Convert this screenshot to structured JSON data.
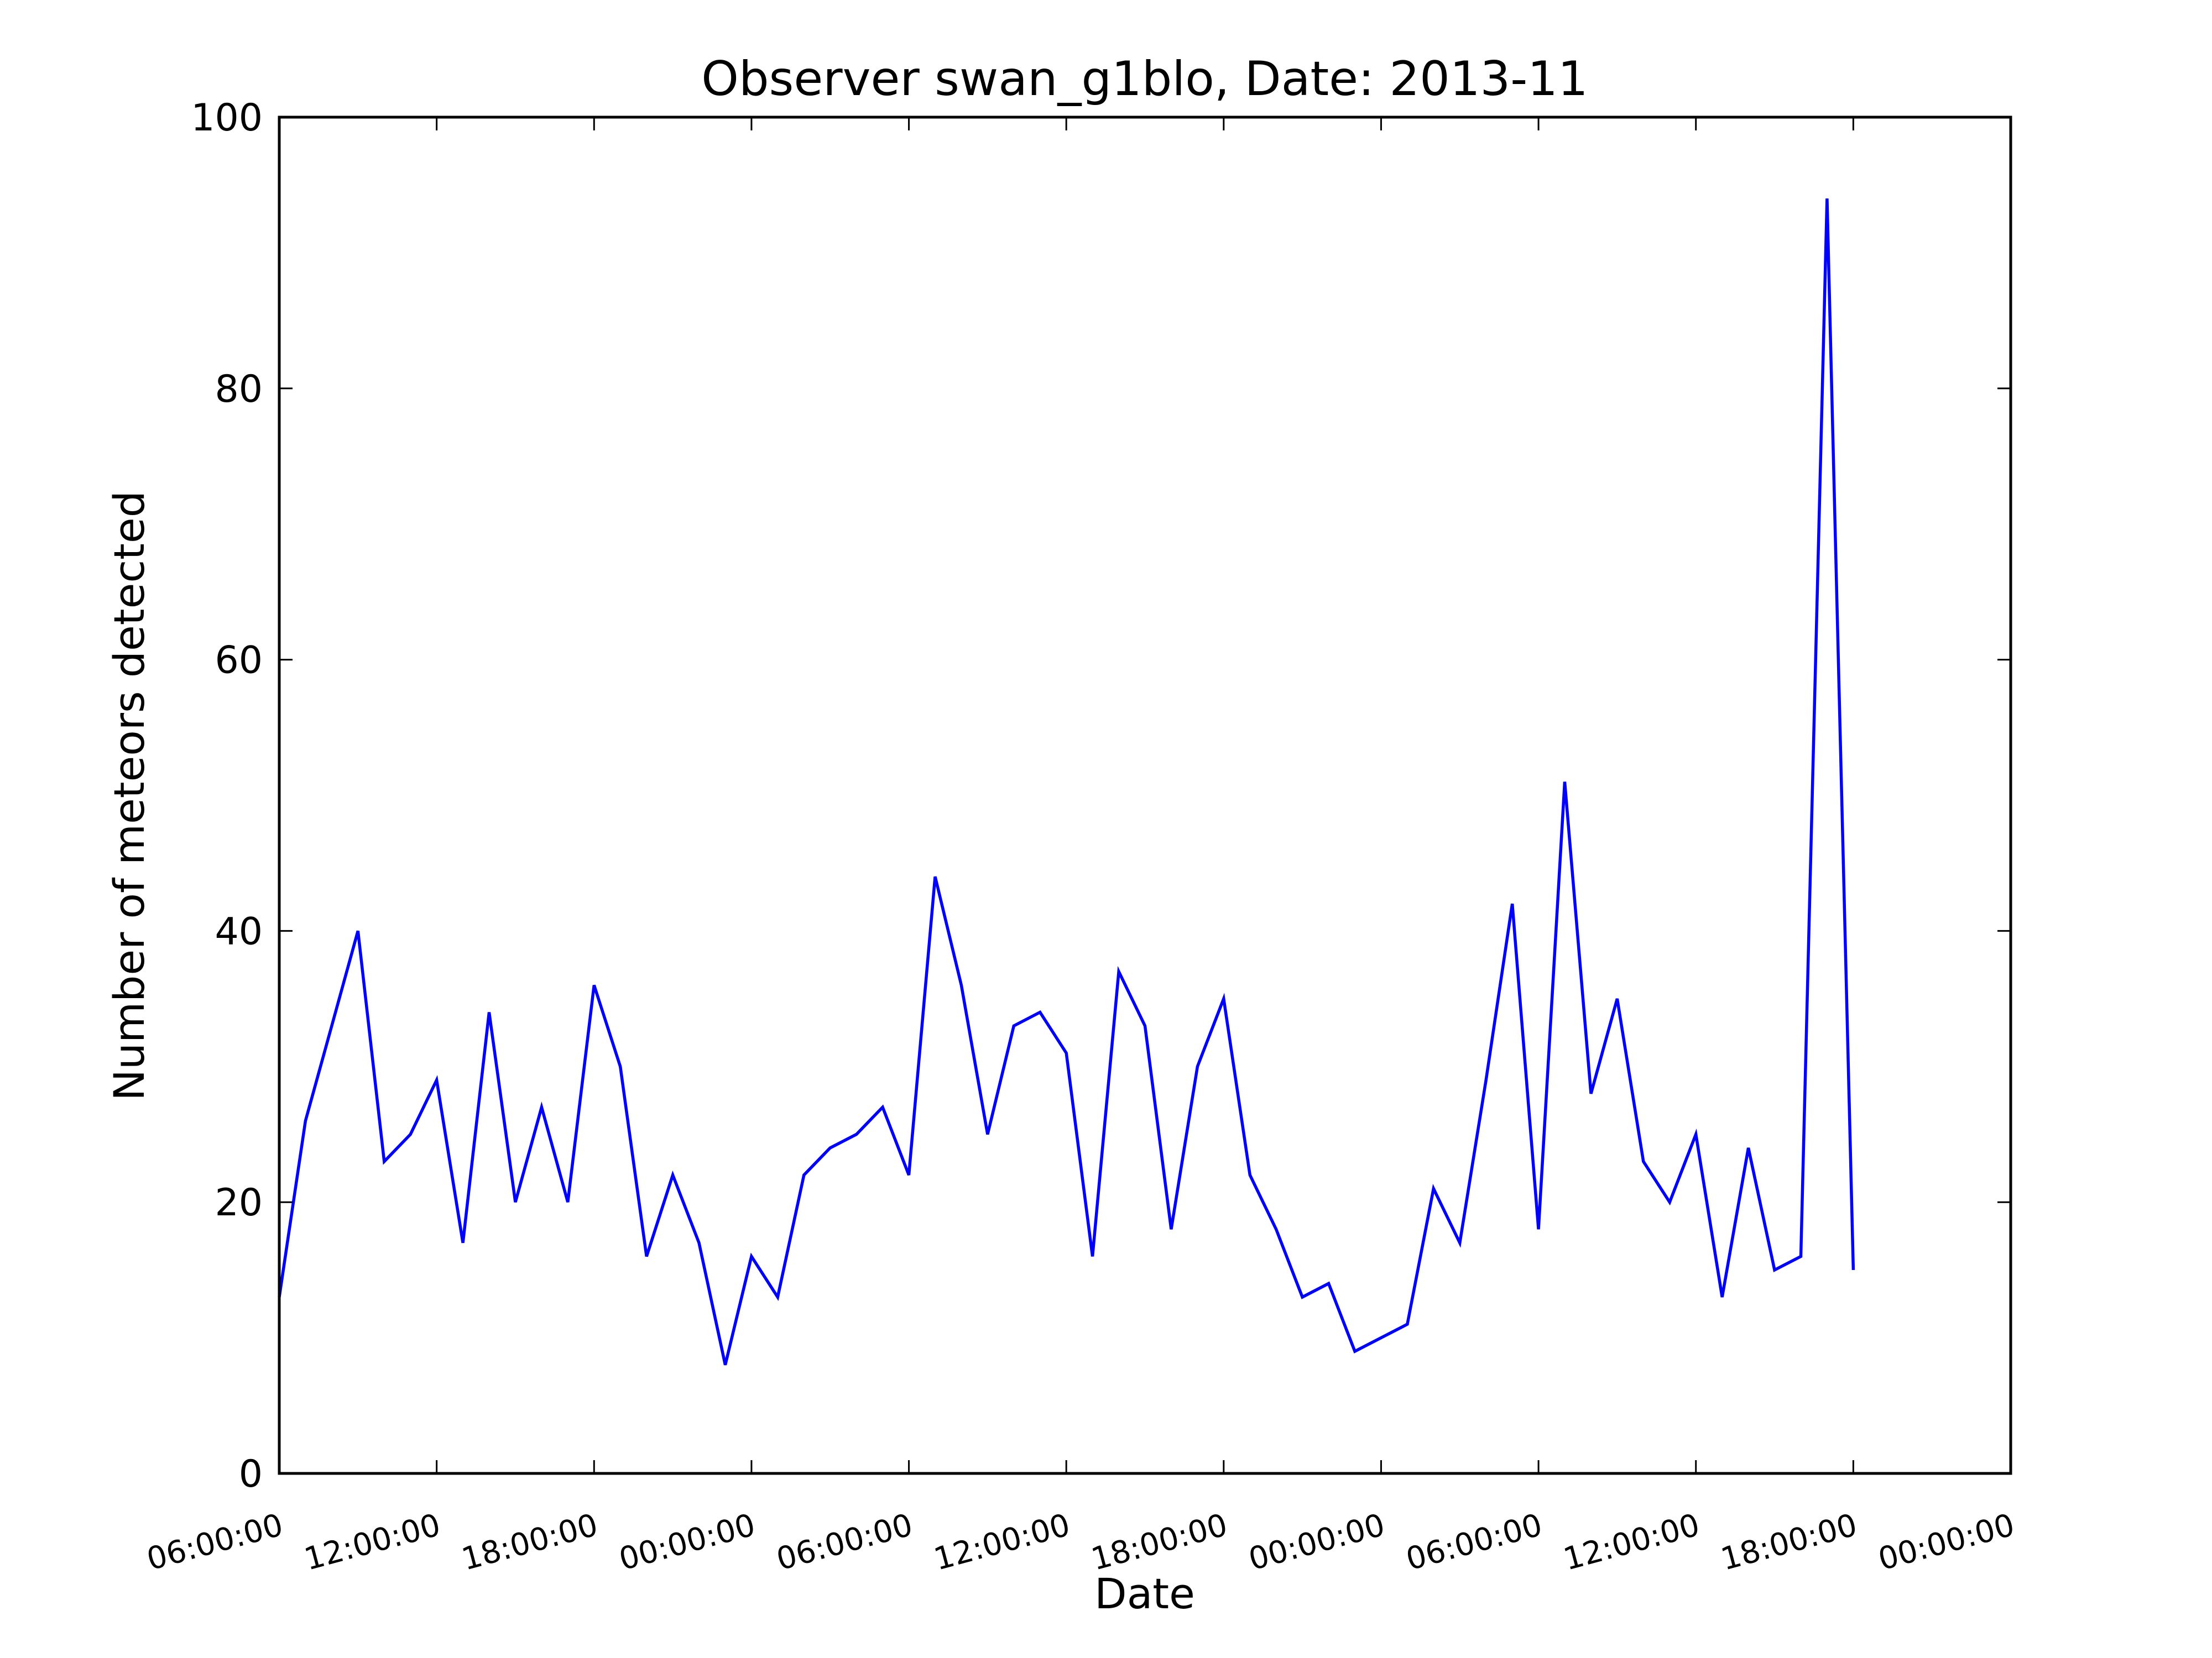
{
  "chart_data": {
    "type": "line",
    "title": "Observer swan_g1blo, Date: 2013-11",
    "xlabel": "Date",
    "ylabel": "Number of meteors detected",
    "xlim": [
      "06:00:00",
      "00:00:00"
    ],
    "ylim": [
      0,
      100
    ],
    "grid": false,
    "legend": "none",
    "line_color": "#0000ff",
    "x_tick_labels": [
      "06:00:00",
      "12:00:00",
      "18:00:00",
      "00:00:00",
      "06:00:00",
      "12:00:00",
      "18:00:00",
      "00:00:00",
      "06:00:00",
      "12:00:00",
      "18:00:00",
      "00:00:00"
    ],
    "y_ticks": [
      0,
      20,
      40,
      60,
      80,
      100
    ],
    "x_interval_hours": 1,
    "series": [
      {
        "values": [
          13,
          26,
          33,
          40,
          23,
          25,
          29,
          17,
          34,
          20,
          27,
          20,
          36,
          30,
          16,
          22,
          17,
          8,
          16,
          13,
          22,
          24,
          25,
          27,
          22,
          44,
          36,
          25,
          33,
          34,
          31,
          16,
          37,
          33,
          18,
          30,
          35,
          22,
          18,
          13,
          14,
          9,
          10,
          11,
          21,
          17,
          29,
          42,
          18,
          51,
          28,
          35,
          23,
          20,
          25,
          13,
          24,
          15,
          16,
          94,
          15
        ]
      }
    ]
  }
}
